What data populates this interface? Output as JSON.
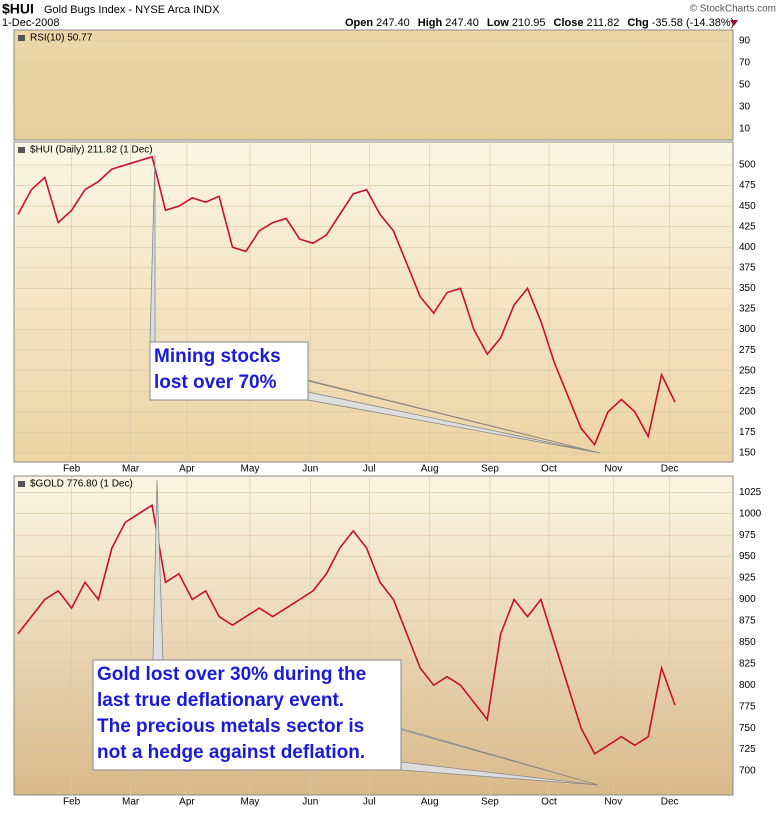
{
  "header": {
    "symbol": "$HUI",
    "name": "Gold Bugs Index - NYSE Arca INDX",
    "date": "1-Dec-2008",
    "copyright": "© StockCharts.com",
    "quote": [
      {
        "label": "Open",
        "value": "247.40"
      },
      {
        "label": "High",
        "value": "247.40"
      },
      {
        "label": "Low",
        "value": "210.95"
      },
      {
        "label": "Close",
        "value": "211.82"
      },
      {
        "label": "Chg",
        "value": "-35.58 (-14.38%)"
      }
    ]
  },
  "chart_data": [
    {
      "type": "line",
      "legend": "RSI(10) 50.77",
      "ylim": [
        0,
        100
      ],
      "yticks": [
        10,
        30,
        50,
        70,
        90
      ],
      "xlim": [
        0,
        48
      ],
      "grid": true
    },
    {
      "type": "line",
      "legend": "$HUI (Daily) 211.82 (1 Dec)",
      "color": "#c8102e",
      "values": [
        440,
        470,
        485,
        430,
        445,
        470,
        480,
        495,
        500,
        505,
        510,
        445,
        450,
        460,
        455,
        462,
        400,
        395,
        420,
        430,
        435,
        410,
        405,
        415,
        440,
        465,
        470,
        440,
        420,
        380,
        340,
        320,
        345,
        350,
        300,
        270,
        290,
        330,
        350,
        310,
        260,
        220,
        180,
        160,
        200,
        215,
        200,
        170,
        245,
        211.82
      ],
      "xlim": [
        0,
        49
      ],
      "ylim": [
        139,
        528
      ],
      "yticks": [
        150,
        175,
        200,
        225,
        250,
        275,
        300,
        325,
        350,
        375,
        400,
        425,
        450,
        475,
        500
      ],
      "xticks": [
        {
          "value": 4.0,
          "label": "Feb"
        },
        {
          "value": 8.4,
          "label": "Mar"
        },
        {
          "value": 12.6,
          "label": "Apr"
        },
        {
          "value": 17.3,
          "label": "May"
        },
        {
          "value": 21.8,
          "label": "Jun"
        },
        {
          "value": 26.2,
          "label": "Jul"
        },
        {
          "value": 30.7,
          "label": "Aug"
        },
        {
          "value": 35.2,
          "label": "Sep"
        },
        {
          "value": 39.6,
          "label": "Oct"
        },
        {
          "value": 44.4,
          "label": "Nov"
        },
        {
          "value": 48.6,
          "label": "Dec"
        }
      ],
      "grid": true,
      "annotation": [
        "Mining stocks",
        "lost over 70%"
      ]
    },
    {
      "type": "line",
      "legend": "$GOLD 776.80 (1 Dec)",
      "color": "#c8102e",
      "values": [
        860,
        880,
        900,
        910,
        890,
        920,
        900,
        960,
        990,
        1000,
        1010,
        920,
        930,
        900,
        910,
        880,
        870,
        880,
        890,
        880,
        890,
        900,
        910,
        930,
        960,
        980,
        960,
        920,
        900,
        860,
        820,
        800,
        810,
        800,
        780,
        760,
        860,
        900,
        880,
        900,
        850,
        800,
        750,
        720,
        730,
        740,
        730,
        740,
        820,
        776.8
      ],
      "xlim": [
        0,
        49
      ],
      "ylim": [
        672,
        1044
      ],
      "yticks": [
        700,
        725,
        750,
        775,
        800,
        825,
        850,
        875,
        900,
        925,
        950,
        975,
        1000,
        1025
      ],
      "xticks": [
        {
          "value": 4.0,
          "label": "Feb"
        },
        {
          "value": 8.4,
          "label": "Mar"
        },
        {
          "value": 12.6,
          "label": "Apr"
        },
        {
          "value": 17.3,
          "label": "May"
        },
        {
          "value": 21.8,
          "label": "Jun"
        },
        {
          "value": 26.2,
          "label": "Jul"
        },
        {
          "value": 30.7,
          "label": "Aug"
        },
        {
          "value": 35.2,
          "label": "Sep"
        },
        {
          "value": 39.6,
          "label": "Oct"
        },
        {
          "value": 44.4,
          "label": "Nov"
        },
        {
          "value": 48.6,
          "label": "Dec"
        }
      ],
      "grid": true,
      "annotation": [
        "Gold lost over 30% during the",
        "last true deflationary event.",
        "The precious metals sector is",
        "not a hedge against deflation."
      ]
    }
  ]
}
